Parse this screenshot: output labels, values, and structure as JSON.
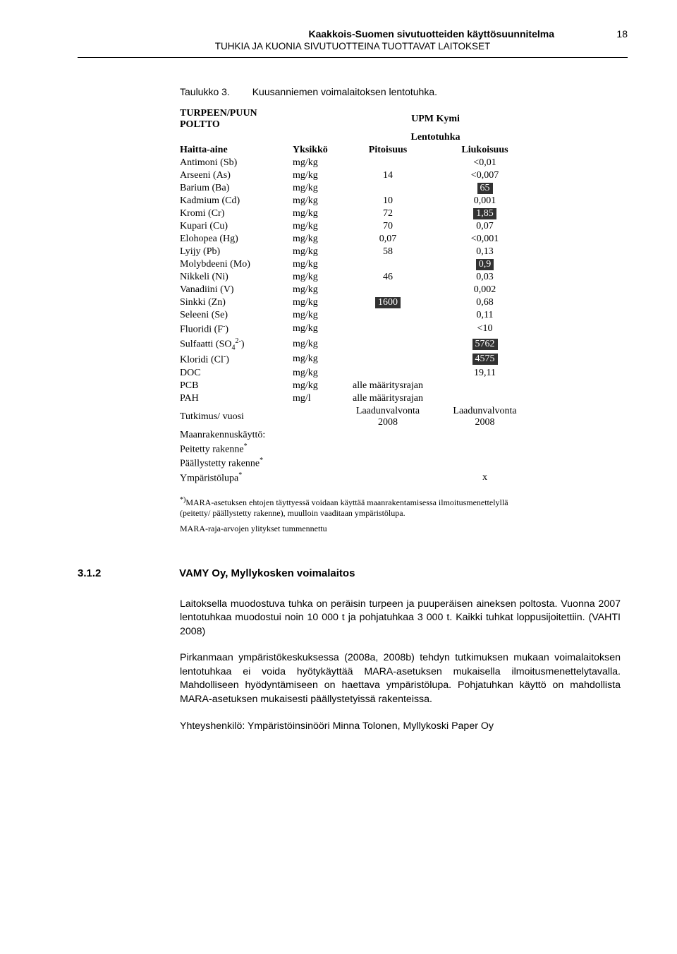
{
  "header": {
    "title1": "Kaakkois-Suomen sivutuotteiden käyttösuunnitelma",
    "title2": "TUHKIA JA KUONIA SIVUTUOTTEINA TUOTTAVAT LAITOKSET",
    "page_number": "18"
  },
  "table_caption": {
    "label": "Taulukko 3.",
    "text": "Kuusanniemen voimalaitoksen lentotuhka."
  },
  "table": {
    "header": {
      "top_left": "TURPEEN/PUUN POLTTO",
      "mid_line1": "UPM Kymi",
      "mid_line2": "Lentotuhka",
      "haitta": "Haitta-aine",
      "yksikko": "Yksikkö",
      "pitoisuus": "Pitoisuus",
      "liukoisuus": "Liukoisuus"
    },
    "rows": [
      {
        "name": "Antimoni (Sb)",
        "unit": "mg/kg",
        "pit": "",
        "liu": "<0,01"
      },
      {
        "name": "Arseeni (As)",
        "unit": "mg/kg",
        "pit": "14",
        "liu": "<0,007"
      },
      {
        "name": "Barium (Ba)",
        "unit": "mg/kg",
        "pit": "",
        "liu": "65",
        "liu_dark": true
      },
      {
        "name": "Kadmium (Cd)",
        "unit": "mg/kg",
        "pit": "10",
        "liu": "0,001"
      },
      {
        "name": "Kromi (Cr)",
        "unit": "mg/kg",
        "pit": "72",
        "liu": "1,85",
        "liu_dark": true
      },
      {
        "name": "Kupari (Cu)",
        "unit": "mg/kg",
        "pit": "70",
        "liu": "0,07"
      },
      {
        "name": "Elohopea (Hg)",
        "unit": "mg/kg",
        "pit": "0,07",
        "liu": "<0,001"
      },
      {
        "name": "Lyijy (Pb)",
        "unit": "mg/kg",
        "pit": "58",
        "liu": "0,13"
      },
      {
        "name": "Molybdeeni (Mo)",
        "unit": "mg/kg",
        "pit": "",
        "liu": "0,9",
        "liu_dark": true
      },
      {
        "name": "Nikkeli (Ni)",
        "unit": "mg/kg",
        "pit": "46",
        "liu": "0,03"
      },
      {
        "name": "Vanadiini (V)",
        "unit": "mg/kg",
        "pit": "",
        "liu": "0,002"
      },
      {
        "name": "Sinkki (Zn)",
        "unit": "mg/kg",
        "pit": "1600",
        "pit_dark": true,
        "liu": "0,68"
      },
      {
        "name": "Seleeni (Se)",
        "unit": "mg/kg",
        "pit": "",
        "liu": "0,11"
      }
    ],
    "group2": [
      {
        "name_html": "Fluoridi (F<span class='sup'>-</span>)",
        "unit": "mg/kg",
        "pit": "",
        "liu": "<10"
      },
      {
        "name_html": "Sulfaatti (SO<span class='sub'>4</span><span class='sup'>2-</span>)",
        "unit": "mg/kg",
        "pit": "",
        "liu": "5762",
        "liu_dark": true
      }
    ],
    "group3": [
      {
        "name_html": "Kloridi (Cl<span class='sup'>-</span>)",
        "unit": "mg/kg",
        "pit": "",
        "liu": "4575",
        "liu_dark": true
      },
      {
        "name": "DOC",
        "unit": "mg/kg",
        "pit": "",
        "liu": "19,11"
      },
      {
        "name": "PCB",
        "unit": "mg/kg",
        "pit": "alle määritysrajan",
        "liu": ""
      },
      {
        "name": "PAH",
        "unit": "mg/l",
        "pit": "alle määritysrajan",
        "liu": ""
      },
      {
        "name": "Tutkimus/ vuosi",
        "unit": "",
        "pit": "Laadunvalvonta 2008",
        "liu": "Laadunvalvonta 2008",
        "twoLine": true
      }
    ],
    "group4": [
      {
        "name": "Maanrakennuskäyttö:",
        "unit": "",
        "pit": "",
        "liu": ""
      },
      {
        "name_html": "Peitetty rakenne<span class='sup'>*</span>",
        "unit": "",
        "pit": "",
        "liu": ""
      },
      {
        "name_html": "Päällystetty rakenne<span class='sup'>*</span>",
        "unit": "",
        "pit": "",
        "liu": ""
      },
      {
        "name_html": "Ympäristölupa<span class='sup'>*</span>",
        "unit": "",
        "pit": "",
        "liu": "x"
      }
    ]
  },
  "footnotes": {
    "f1": "*)MARA-asetuksen ehtojen täyttyessä voidaan käyttää maanrakentamisessa ilmoitusmenettelyllä (peitetty/ päällystetty rakenne), muulloin vaaditaan ympäristölupa.",
    "f2": "MARA-raja-arvojen ylitykset tummennettu"
  },
  "section": {
    "number": "3.1.2",
    "title": "VAMY Oy, Myllykosken voimalaitos"
  },
  "paragraphs": {
    "p1": "Laitoksella muodostuva tuhka on peräisin turpeen ja puuperäisen aineksen poltosta. Vuonna 2007 lentotuhkaa muodostui noin 10 000 t ja pohjatuhkaa 3 000 t. Kaikki tuhkat loppusijoitettiin. (VAHTI 2008)",
    "p2": "Pirkanmaan ympäristökeskuksessa (2008a, 2008b) tehdyn tutkimuksen mukaan voimalaitoksen lentotuhkaa ei voida hyötykäyttää MARA-asetuksen mukaisella ilmoitusmenettelytavalla. Mahdolliseen hyödyntämiseen on haettava ympäristölupa. Pohjatuhkan käyttö on mahdollista MARA-asetuksen mukaisesti päällystetyissä rakenteissa.",
    "p3": "Yhteyshenkilö: Ympäristöinsinööri Minna Tolonen, Myllykoski Paper Oy"
  },
  "colors": {
    "dark_bg": "#323232",
    "text": "#000000",
    "bg": "#ffffff"
  }
}
